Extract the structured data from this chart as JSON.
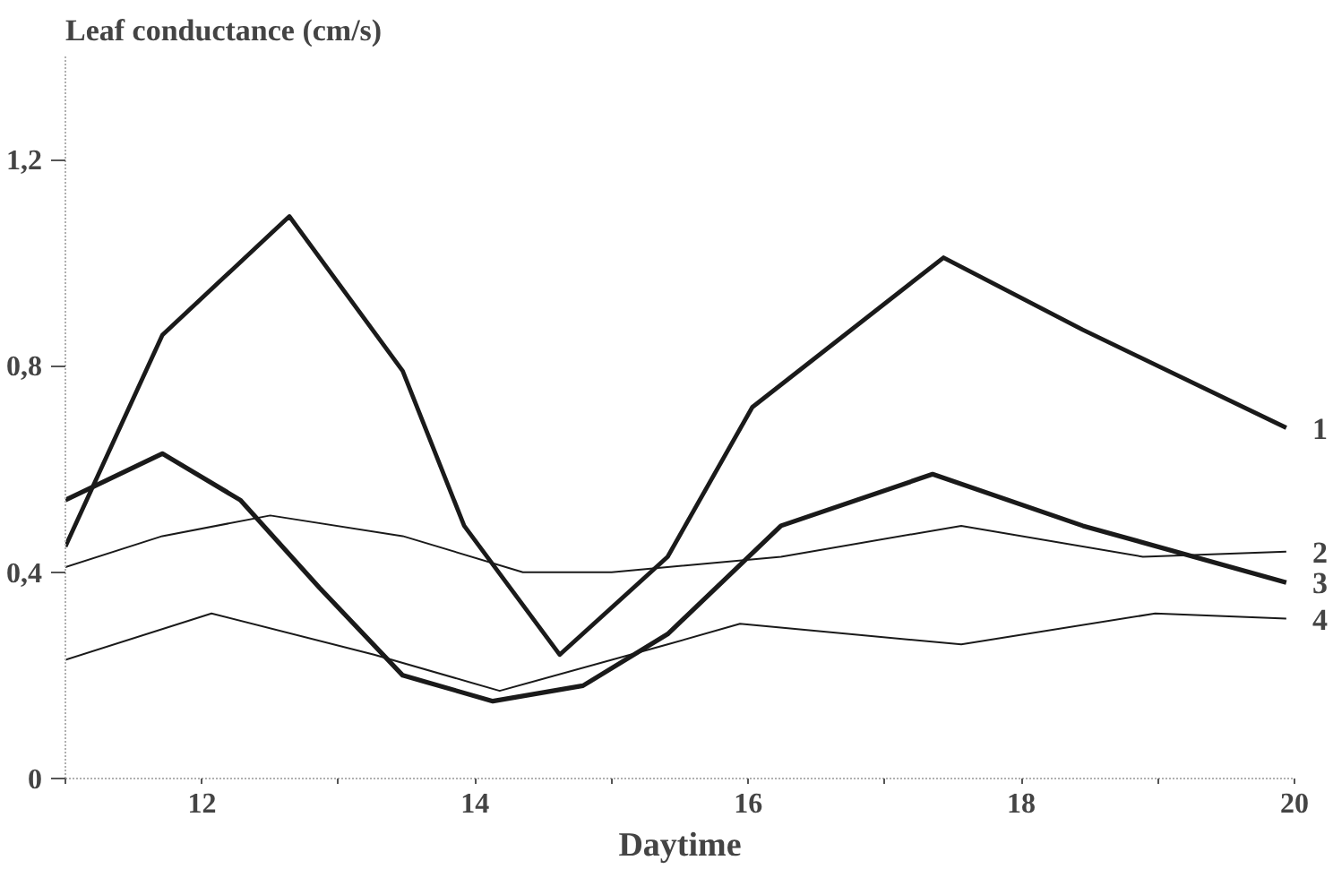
{
  "chart_data": {
    "type": "line",
    "ylabel": "Leaf conductance (cm/s)",
    "xlabel": "Daytime",
    "xlim": [
      11,
      20
    ],
    "xticks": [
      {
        "value": 11,
        "label": null
      },
      12,
      {
        "value": 13,
        "label": null
      },
      14,
      {
        "value": 15,
        "label": null
      },
      16,
      {
        "value": 17,
        "label": null
      },
      18,
      {
        "value": 19,
        "label": null
      },
      20
    ],
    "ylim": [
      0,
      1.4
    ],
    "yticks": [
      0,
      {
        "value": 0.4,
        "label": "0,4"
      },
      {
        "value": 0.8,
        "label": "0,8"
      },
      {
        "value": 1.2,
        "label": "1,2"
      }
    ],
    "grid": false,
    "marker": "none",
    "line_style": "solid",
    "series": [
      {
        "name": "1",
        "color": "#1a1a1a",
        "x": [
          11,
          11.71,
          12.64,
          13.47,
          13.92,
          14.62,
          15.41,
          16.03,
          17.43,
          18.45,
          19.94
        ],
        "values": [
          0.45,
          0.86,
          1.09,
          0.79,
          0.49,
          0.24,
          0.43,
          0.72,
          1.01,
          0.87,
          0.68
        ]
      },
      {
        "name": "2",
        "color": "#1a1a1a",
        "x": [
          11,
          11.71,
          12.5,
          13.47,
          14.35,
          15.0,
          16.24,
          17.56,
          18.89,
          19.94
        ],
        "values": [
          0.41,
          0.47,
          0.51,
          0.47,
          0.4,
          0.4,
          0.43,
          0.49,
          0.43,
          0.44
        ]
      },
      {
        "name": "3",
        "color": "#1a1a1a",
        "x": [
          11,
          11.71,
          12.28,
          12.86,
          13.47,
          14.13,
          14.79,
          15.41,
          16.24,
          17.35,
          18.45,
          19.94
        ],
        "values": [
          0.54,
          0.63,
          0.54,
          0.37,
          0.2,
          0.15,
          0.18,
          0.28,
          0.49,
          0.59,
          0.49,
          0.38
        ]
      },
      {
        "name": "4",
        "color": "#1a1a1a",
        "x": [
          11,
          12.07,
          13.26,
          14.18,
          15.41,
          15.94,
          17.56,
          18.98,
          19.94
        ],
        "values": [
          0.23,
          0.32,
          0.24,
          0.17,
          0.26,
          0.3,
          0.26,
          0.32,
          0.31
        ]
      }
    ]
  }
}
